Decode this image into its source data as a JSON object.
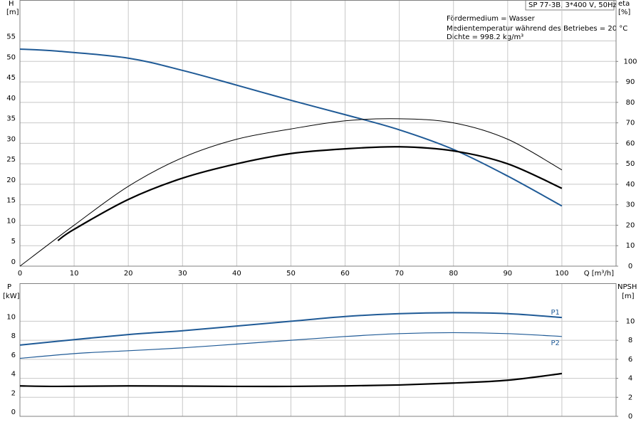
{
  "chart_data": [
    {
      "type": "line",
      "title": "SP 77-3B, 3*400 V, 50Hz",
      "annotations": [
        "Fördermedium = Wasser",
        "Medientemperatur während des Betriebes = 20 °C",
        "Dichte = 998.2 kg/m³"
      ],
      "y_label": "H",
      "y_unit": "[m]",
      "y2_label": "eta",
      "y2_unit": "[%]",
      "x_label": "Q [m³/h]",
      "xlim": [
        0,
        110
      ],
      "xticks": [
        0,
        10,
        20,
        30,
        40,
        50,
        60,
        70,
        80,
        90,
        100
      ],
      "ylim": [
        0,
        65
      ],
      "yticks": [
        0,
        5,
        10,
        15,
        20,
        25,
        30,
        35,
        40,
        45,
        50,
        55
      ],
      "y2lim": [
        0,
        130
      ],
      "y2ticks": [
        0,
        10,
        20,
        30,
        40,
        50,
        60,
        70,
        80,
        90,
        100
      ],
      "grid": true,
      "series": [
        {
          "color": "#1f5a96",
          "width": 2,
          "x": [
            0,
            7,
            20,
            30,
            40,
            50,
            60,
            70,
            80,
            90,
            100
          ],
          "values": [
            53,
            52.5,
            50.8,
            47.8,
            44.2,
            40.5,
            37,
            33.3,
            28.5,
            22,
            14.7
          ]
        },
        {
          "color": "#000000",
          "width": 1,
          "axis": "y2",
          "x": [
            0,
            10,
            20,
            30,
            40,
            50,
            60,
            70,
            80,
            90,
            100
          ],
          "values": [
            0,
            20,
            39,
            53,
            62,
            67,
            71,
            72,
            70,
            62,
            47
          ]
        },
        {
          "color": "#000000",
          "width": 2.2,
          "axis": "y2",
          "x": [
            7,
            10,
            20,
            30,
            40,
            50,
            60,
            70,
            80,
            90,
            100
          ],
          "values": [
            12.5,
            18,
            32.6,
            43,
            50,
            55,
            57.3,
            58.3,
            56.3,
            50,
            38
          ]
        }
      ]
    },
    {
      "type": "line",
      "y_label": "P",
      "y_unit": "[kW]",
      "y2_label": "NPSH",
      "y2_unit": "[m]",
      "ylim": [
        0,
        14
      ],
      "yticks": [
        0,
        2,
        4,
        6,
        8,
        10
      ],
      "y2lim": [
        0,
        14
      ],
      "y2ticks": [
        0,
        2,
        4,
        6,
        8,
        10
      ],
      "grid": true,
      "series": [
        {
          "name": "P1",
          "color": "#1f5a96",
          "width": 2,
          "x": [
            0,
            7,
            20,
            30,
            40,
            50,
            60,
            70,
            80,
            90,
            100
          ],
          "values": [
            7.5,
            7.9,
            8.6,
            9.0,
            9.5,
            10.0,
            10.5,
            10.8,
            10.9,
            10.8,
            10.4
          ]
        },
        {
          "name": "P2",
          "color": "#1f5a96",
          "width": 1.2,
          "x": [
            0,
            10,
            20,
            30,
            40,
            50,
            60,
            70,
            80,
            90,
            100
          ],
          "values": [
            6.1,
            6.6,
            6.9,
            7.2,
            7.6,
            8.0,
            8.4,
            8.7,
            8.8,
            8.7,
            8.4
          ]
        },
        {
          "color": "#000000",
          "width": 2.2,
          "axis": "y2",
          "x": [
            0,
            7,
            20,
            40,
            50,
            60,
            70,
            80,
            90,
            100
          ],
          "values": [
            3.2,
            3.15,
            3.2,
            3.15,
            3.15,
            3.2,
            3.3,
            3.5,
            3.8,
            4.5
          ]
        }
      ]
    }
  ]
}
